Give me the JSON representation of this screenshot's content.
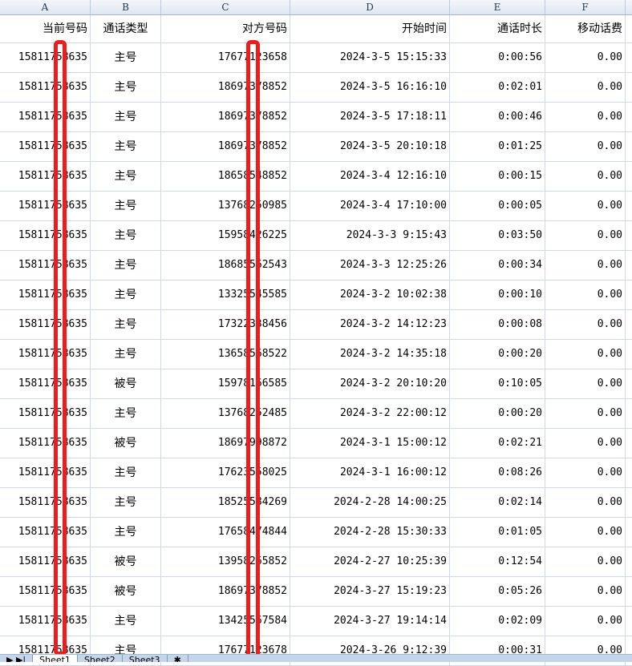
{
  "columns": [
    "A",
    "B",
    "C",
    "D",
    "E",
    "F"
  ],
  "headers": [
    "当前号码",
    "通话类型",
    "对方号码",
    "开始时间",
    "通话时长",
    "移动话费"
  ],
  "rows": [
    [
      "15811758635",
      "主号",
      "17677123658",
      "2024-3-5 15:15:33",
      "0:00:56",
      "0.00"
    ],
    [
      "15811758635",
      "主号",
      "18697378852",
      "2024-3-5 16:16:10",
      "0:02:01",
      "0.00"
    ],
    [
      "15811758635",
      "主号",
      "18697378852",
      "2024-3-5 17:18:11",
      "0:00:46",
      "0.00"
    ],
    [
      "15811758635",
      "主号",
      "18697378852",
      "2024-3-5 20:10:18",
      "0:01:25",
      "0.00"
    ],
    [
      "15811758635",
      "主号",
      "18658548852",
      "2024-3-4 12:16:10",
      "0:00:15",
      "0.00"
    ],
    [
      "15811758635",
      "主号",
      "13768250985",
      "2024-3-4 17:10:00",
      "0:00:05",
      "0.00"
    ],
    [
      "15811758635",
      "主号",
      "15958426225",
      "2024-3-3 9:15:43",
      "0:03:50",
      "0.00"
    ],
    [
      "15811758635",
      "主号",
      "18685562543",
      "2024-3-3 12:25:26",
      "0:00:34",
      "0.00"
    ],
    [
      "15811758635",
      "主号",
      "13325545585",
      "2024-3-2 10:02:38",
      "0:00:10",
      "0.00"
    ],
    [
      "15811758635",
      "主号",
      "17322338456",
      "2024-3-2 14:12:23",
      "0:00:08",
      "0.00"
    ],
    [
      "15811758635",
      "主号",
      "13658568522",
      "2024-3-2 14:35:18",
      "0:00:20",
      "0.00"
    ],
    [
      "15811758635",
      "被号",
      "15978166585",
      "2024-3-2 20:10:20",
      "0:10:05",
      "0.00"
    ],
    [
      "15811758635",
      "主号",
      "13768252485",
      "2024-3-2 22:00:12",
      "0:00:20",
      "0.00"
    ],
    [
      "15811758635",
      "被号",
      "18697998872",
      "2024-3-1 15:00:12",
      "0:02:21",
      "0.00"
    ],
    [
      "15811758635",
      "主号",
      "17623558025",
      "2024-3-1 16:00:12",
      "0:08:26",
      "0.00"
    ],
    [
      "15811758635",
      "主号",
      "18525584269",
      "2024-2-28 14:00:25",
      "0:02:14",
      "0.00"
    ],
    [
      "15811758635",
      "主号",
      "17658474844",
      "2024-2-28 15:30:33",
      "0:01:05",
      "0.00"
    ],
    [
      "15811758635",
      "被号",
      "13958265852",
      "2024-2-27 10:25:39",
      "0:12:54",
      "0.00"
    ],
    [
      "15811758635",
      "被号",
      "18697378852",
      "2024-3-27 15:19:23",
      "0:05:26",
      "0.00"
    ],
    [
      "15811758635",
      "主号",
      "13425567584",
      "2024-3-27 19:14:14",
      "0:02:09",
      "0.00"
    ],
    [
      "15811758635",
      "主号",
      "17677123678",
      "2024-3-26 9:12:39",
      "0:00:31",
      "0.00"
    ]
  ],
  "sheet_tabs": [
    "Sheet1",
    "Sheet2",
    "Sheet3"
  ],
  "redaction_color": "#ee1c1c"
}
